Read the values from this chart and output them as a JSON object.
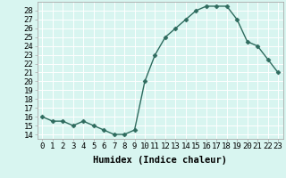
{
  "x": [
    0,
    1,
    2,
    3,
    4,
    5,
    6,
    7,
    8,
    9,
    10,
    11,
    12,
    13,
    14,
    15,
    16,
    17,
    18,
    19,
    20,
    21,
    22,
    23
  ],
  "y": [
    16,
    15.5,
    15.5,
    15,
    15.5,
    15,
    14.5,
    14,
    14,
    14.5,
    20,
    23,
    25,
    26,
    27,
    28,
    28.5,
    28.5,
    28.5,
    27,
    24.5,
    24,
    22.5,
    21
  ],
  "line_color": "#2e6b5e",
  "marker": "D",
  "marker_size": 2.5,
  "bg_color": "#d8f5f0",
  "grid_color": "#ffffff",
  "xlabel": "Humidex (Indice chaleur)",
  "xlim": [
    -0.5,
    23.5
  ],
  "ylim": [
    13.5,
    29
  ],
  "yticks": [
    14,
    15,
    16,
    17,
    18,
    19,
    20,
    21,
    22,
    23,
    24,
    25,
    26,
    27,
    28
  ],
  "xticks": [
    0,
    1,
    2,
    3,
    4,
    5,
    6,
    7,
    8,
    9,
    10,
    11,
    12,
    13,
    14,
    15,
    16,
    17,
    18,
    19,
    20,
    21,
    22,
    23
  ],
  "xlabel_fontsize": 7.5,
  "tick_fontsize": 6.5,
  "line_width": 1.0
}
